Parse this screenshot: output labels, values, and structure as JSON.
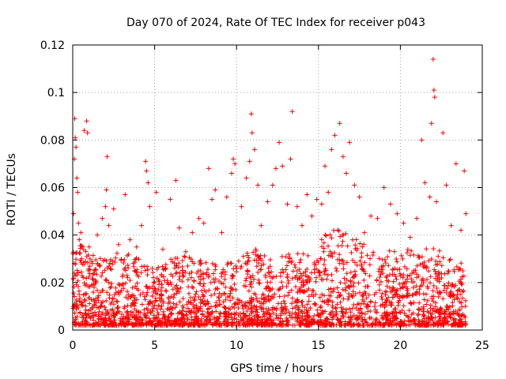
{
  "colors": {
    "series": "#ff0000",
    "axis": "#000000",
    "grid": "#a0a0a0"
  },
  "chart_data": {
    "type": "scatter",
    "title": "Day 070 of 2024, Rate Of TEC Index for receiver p043",
    "xlabel": "GPS time / hours",
    "ylabel": "ROTI / TECUs",
    "xlim": [
      0,
      25
    ],
    "ylim": [
      0,
      0.12
    ],
    "x_ticks": [
      0,
      5,
      10,
      15,
      20,
      25
    ],
    "y_ticks": [
      0,
      0.02,
      0.04,
      0.06,
      0.08,
      0.1,
      0.12
    ],
    "x_tick_labels": [
      "0",
      "5",
      "10",
      "15",
      "20",
      "25"
    ],
    "y_tick_labels": [
      "0",
      "0.02",
      "0.04",
      "0.06",
      "0.08",
      "0.1",
      "0.12"
    ],
    "grid": true,
    "marker": "plus",
    "series": [
      {
        "name": "ROTI",
        "points": [
          [
            0.05,
            0.049
          ],
          [
            0.1,
            0.072
          ],
          [
            0.12,
            0.089
          ],
          [
            0.15,
            0.081
          ],
          [
            0.2,
            0.077
          ],
          [
            0.25,
            0.064
          ],
          [
            0.3,
            0.058
          ],
          [
            0.35,
            0.045
          ],
          [
            0.4,
            0.038
          ],
          [
            0.5,
            0.041
          ],
          [
            0.55,
            0.03
          ],
          [
            0.7,
            0.084
          ],
          [
            0.85,
            0.088
          ],
          [
            0.9,
            0.083
          ],
          [
            1.0,
            0.035
          ],
          [
            1.2,
            0.028
          ],
          [
            1.5,
            0.04
          ],
          [
            1.8,
            0.047
          ],
          [
            2.0,
            0.052
          ],
          [
            2.05,
            0.059
          ],
          [
            2.1,
            0.073
          ],
          [
            2.2,
            0.044
          ],
          [
            2.5,
            0.051
          ],
          [
            2.8,
            0.036
          ],
          [
            3.2,
            0.057
          ],
          [
            3.5,
            0.038
          ],
          [
            3.9,
            0.035
          ],
          [
            4.2,
            0.044
          ],
          [
            4.45,
            0.071
          ],
          [
            4.5,
            0.067
          ],
          [
            4.6,
            0.062
          ],
          [
            4.7,
            0.052
          ],
          [
            5.1,
            0.058
          ],
          [
            5.5,
            0.034
          ],
          [
            5.95,
            0.055
          ],
          [
            6.3,
            0.063
          ],
          [
            6.5,
            0.043
          ],
          [
            6.9,
            0.033
          ],
          [
            7.3,
            0.041
          ],
          [
            7.7,
            0.047
          ],
          [
            8.0,
            0.045
          ],
          [
            8.3,
            0.068
          ],
          [
            8.5,
            0.055
          ],
          [
            8.7,
            0.059
          ],
          [
            9.1,
            0.041
          ],
          [
            9.4,
            0.056
          ],
          [
            9.7,
            0.066
          ],
          [
            9.8,
            0.072
          ],
          [
            9.9,
            0.07
          ],
          [
            10.3,
            0.052
          ],
          [
            10.6,
            0.064
          ],
          [
            10.8,
            0.071
          ],
          [
            10.9,
            0.091
          ],
          [
            10.95,
            0.083
          ],
          [
            11.1,
            0.076
          ],
          [
            11.3,
            0.061
          ],
          [
            11.5,
            0.044
          ],
          [
            11.9,
            0.054
          ],
          [
            12.2,
            0.061
          ],
          [
            12.4,
            0.068
          ],
          [
            12.6,
            0.079
          ],
          [
            12.8,
            0.069
          ],
          [
            13.1,
            0.053
          ],
          [
            13.3,
            0.072
          ],
          [
            13.4,
            0.092
          ],
          [
            13.7,
            0.052
          ],
          [
            14.0,
            0.044
          ],
          [
            14.3,
            0.057
          ],
          [
            14.6,
            0.048
          ],
          [
            14.9,
            0.055
          ],
          [
            15.2,
            0.053
          ],
          [
            15.4,
            0.069
          ],
          [
            15.6,
            0.058
          ],
          [
            15.8,
            0.076
          ],
          [
            16.0,
            0.082
          ],
          [
            16.3,
            0.087
          ],
          [
            16.5,
            0.073
          ],
          [
            16.7,
            0.066
          ],
          [
            16.9,
            0.079
          ],
          [
            17.2,
            0.061
          ],
          [
            17.5,
            0.056
          ],
          [
            17.8,
            0.041
          ],
          [
            18.2,
            0.048
          ],
          [
            18.6,
            0.047
          ],
          [
            19.0,
            0.06
          ],
          [
            19.4,
            0.053
          ],
          [
            19.8,
            0.049
          ],
          [
            20.2,
            0.045
          ],
          [
            20.6,
            0.039
          ],
          [
            21.0,
            0.047
          ],
          [
            21.3,
            0.08
          ],
          [
            21.5,
            0.062
          ],
          [
            21.8,
            0.056
          ],
          [
            21.9,
            0.087
          ],
          [
            22.0,
            0.114
          ],
          [
            22.05,
            0.101
          ],
          [
            22.1,
            0.098
          ],
          [
            22.2,
            0.054
          ],
          [
            22.6,
            0.083
          ],
          [
            22.8,
            0.061
          ],
          [
            23.1,
            0.044
          ],
          [
            23.4,
            0.07
          ],
          [
            23.7,
            0.042
          ],
          [
            23.9,
            0.067
          ],
          [
            24.0,
            0.049
          ]
        ]
      }
    ],
    "dense_band": {
      "description": "dense band of ROTI samples between 0.002 and ~0.03 TECU across 0-24 h",
      "x_range": [
        0,
        24
      ],
      "y_floor": 0.002,
      "y_envelope": [
        [
          0,
          0.04
        ],
        [
          1,
          0.032
        ],
        [
          2,
          0.03
        ],
        [
          3,
          0.034
        ],
        [
          4,
          0.03
        ],
        [
          5,
          0.026
        ],
        [
          6,
          0.03
        ],
        [
          7,
          0.032
        ],
        [
          8,
          0.03
        ],
        [
          9,
          0.028
        ],
        [
          10,
          0.03
        ],
        [
          11,
          0.036
        ],
        [
          12,
          0.03
        ],
        [
          13,
          0.034
        ],
        [
          14,
          0.032
        ],
        [
          15,
          0.038
        ],
        [
          16,
          0.044
        ],
        [
          17,
          0.04
        ],
        [
          18,
          0.036
        ],
        [
          19,
          0.032
        ],
        [
          20,
          0.036
        ],
        [
          21,
          0.032
        ],
        [
          22,
          0.036
        ],
        [
          23,
          0.03
        ],
        [
          24,
          0.028
        ]
      ],
      "point_count": 2600
    }
  }
}
